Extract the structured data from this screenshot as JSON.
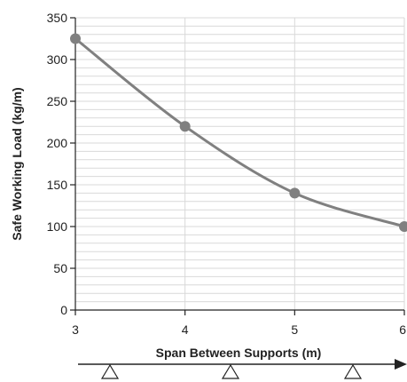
{
  "chart_data": {
    "type": "line",
    "title": "",
    "xlabel": "Span Between Supports (m)",
    "ylabel": "Safe Working Load (kg/m)",
    "x": [
      3,
      4,
      5,
      6
    ],
    "series": [
      {
        "values": [
          325,
          220,
          140,
          100
        ]
      }
    ],
    "xlim": [
      3,
      6
    ],
    "ylim": [
      0,
      350
    ],
    "xticks": [
      3,
      4,
      5,
      6
    ],
    "yticks": [
      0,
      50,
      100,
      150,
      200,
      250,
      300,
      350
    ],
    "grid": true,
    "line_color": "#808080",
    "grid_color": "#d9d9d9",
    "axis_color": "#222222"
  }
}
